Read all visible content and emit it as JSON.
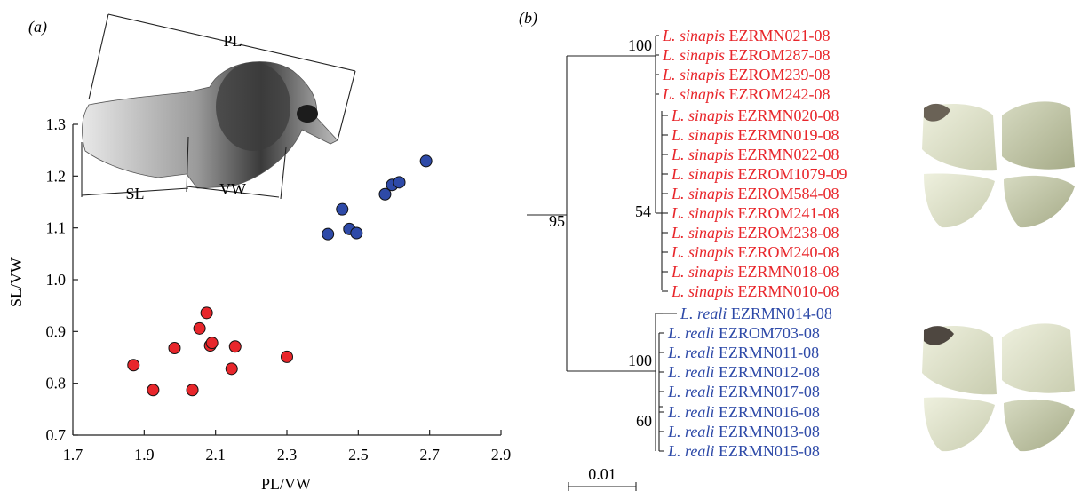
{
  "panels": {
    "a_label": "(a)",
    "b_label": "(b)"
  },
  "chart_data": [
    {
      "type": "scatter",
      "panel": "(a)",
      "xlabel": "PL/VW",
      "ylabel": "SL/VW",
      "xlim": [
        1.7,
        2.9
      ],
      "ylim": [
        0.7,
        1.3
      ],
      "xticks": [
        "1.7",
        "1.9",
        "2.1",
        "2.3",
        "2.5",
        "2.7",
        "2.9"
      ],
      "yticks": [
        "0.7",
        "0.8",
        "0.9",
        "1.0",
        "1.1",
        "1.2",
        "1.3"
      ],
      "grid": false,
      "series": [
        {
          "color": "#e8262b",
          "points": [
            [
              1.87,
              0.835
            ],
            [
              1.925,
              0.787
            ],
            [
              1.985,
              0.868
            ],
            [
              2.035,
              0.787
            ],
            [
              2.055,
              0.906
            ],
            [
              2.075,
              0.936
            ],
            [
              2.085,
              0.873
            ],
            [
              2.09,
              0.878
            ],
            [
              2.145,
              0.828
            ],
            [
              2.155,
              0.871
            ],
            [
              2.3,
              0.851
            ]
          ]
        },
        {
          "color": "#2e4aa8",
          "points": [
            [
              2.415,
              1.088
            ],
            [
              2.455,
              1.136
            ],
            [
              2.475,
              1.098
            ],
            [
              2.495,
              1.09
            ],
            [
              2.575,
              1.165
            ],
            [
              2.595,
              1.183
            ],
            [
              2.615,
              1.188
            ],
            [
              2.69,
              1.229
            ]
          ]
        }
      ],
      "inset": {
        "description_colors": [
          "#3a3a3a",
          "#bdbdbd"
        ],
        "labels": [
          "PL",
          "SL",
          "VW"
        ]
      }
    },
    {
      "type": "tree",
      "panel": "(b)",
      "scale_bar_label": "0.01",
      "colors": {
        "sinapis": "#e8262b",
        "reali": "#2e4aa8"
      },
      "node_supports": {
        "root": "95",
        "sinapis_top": "100",
        "sinapis_sub": "54",
        "reali_clade": "100",
        "reali_sub": "60"
      },
      "taxa": [
        {
          "species": "L. sinapis",
          "id": "EZRMN021-08",
          "group": "sinapis"
        },
        {
          "species": "L. sinapis",
          "id": "EZROM287-08",
          "group": "sinapis"
        },
        {
          "species": "L. sinapis",
          "id": "EZROM239-08",
          "group": "sinapis"
        },
        {
          "species": "L. sinapis",
          "id": "EZROM242-08",
          "group": "sinapis"
        },
        {
          "species": "L. sinapis",
          "id": "EZRMN020-08",
          "group": "sinapis"
        },
        {
          "species": "L. sinapis",
          "id": "EZRMN019-08",
          "group": "sinapis"
        },
        {
          "species": "L. sinapis",
          "id": "EZRMN022-08",
          "group": "sinapis"
        },
        {
          "species": "L. sinapis",
          "id": "EZROM1079-09",
          "group": "sinapis"
        },
        {
          "species": "L. sinapis",
          "id": "EZROM584-08",
          "group": "sinapis"
        },
        {
          "species": "L. sinapis",
          "id": "EZROM241-08",
          "group": "sinapis"
        },
        {
          "species": "L. sinapis",
          "id": "EZROM238-08",
          "group": "sinapis"
        },
        {
          "species": "L. sinapis",
          "id": "EZROM240-08",
          "group": "sinapis"
        },
        {
          "species": "L. sinapis",
          "id": "EZRMN018-08",
          "group": "sinapis"
        },
        {
          "species": "L. sinapis",
          "id": "EZRMN010-08",
          "group": "sinapis"
        },
        {
          "species": "L. reali",
          "id": "EZRMN014-08",
          "group": "reali"
        },
        {
          "species": "L. reali",
          "id": "EZROM703-08",
          "group": "reali"
        },
        {
          "species": "L. reali",
          "id": "EZRMN011-08",
          "group": "reali"
        },
        {
          "species": "L. reali",
          "id": "EZRMN012-08",
          "group": "reali"
        },
        {
          "species": "L. reali",
          "id": "EZRMN017-08",
          "group": "reali"
        },
        {
          "species": "L. reali",
          "id": "EZRMN016-08",
          "group": "reali"
        },
        {
          "species": "L. reali",
          "id": "EZRMN013-08",
          "group": "reali"
        },
        {
          "species": "L. reali",
          "id": "EZRMN015-08",
          "group": "reali"
        }
      ]
    }
  ]
}
